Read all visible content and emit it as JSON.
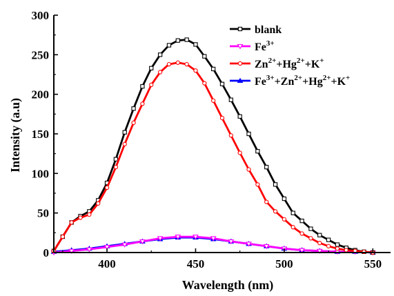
{
  "chart_data": {
    "type": "line",
    "xlabel": "Wavelength (nm)",
    "ylabel": "Intensity (a.u)",
    "xlim": [
      370,
      560
    ],
    "ylim": [
      0,
      300
    ],
    "xticks": [
      400,
      450,
      500,
      550
    ],
    "yticks": [
      0,
      50,
      100,
      150,
      200,
      250,
      300
    ],
    "grid": false,
    "legend_position": "top-right",
    "series": [
      {
        "name": "blank",
        "color": "#000000",
        "marker": "square",
        "x": [
          370,
          375,
          380,
          385,
          390,
          395,
          400,
          405,
          410,
          415,
          420,
          425,
          430,
          435,
          440,
          445,
          450,
          455,
          460,
          465,
          470,
          475,
          480,
          485,
          490,
          495,
          500,
          505,
          510,
          515,
          520,
          525,
          530,
          535,
          540,
          545,
          550
        ],
        "y": [
          2,
          20,
          38,
          46,
          52,
          66,
          88,
          118,
          152,
          182,
          210,
          233,
          250,
          262,
          268,
          269,
          263,
          248,
          232,
          213,
          193,
          172,
          150,
          128,
          108,
          86,
          68,
          50,
          40,
          30,
          22,
          16,
          10,
          6,
          3,
          1,
          0
        ]
      },
      {
        "name": "Fe³⁺",
        "label_parts": [
          [
            "Fe",
            ""
          ],
          [
            "3+",
            "sup"
          ]
        ],
        "color": "#ff00ff",
        "marker": "triangle-down",
        "x": [
          370,
          380,
          390,
          400,
          410,
          420,
          430,
          440,
          450,
          460,
          470,
          480,
          490,
          500,
          510,
          520,
          530,
          540,
          550
        ],
        "y": [
          0,
          2,
          4,
          7,
          10,
          14,
          18,
          20,
          20,
          18,
          14,
          11,
          8,
          5,
          3,
          2,
          1,
          1,
          0
        ]
      },
      {
        "name": "Zn²⁺+Hg²⁺+K⁺",
        "label_parts": [
          [
            "Zn",
            ""
          ],
          [
            "2+",
            "sup"
          ],
          [
            "+Hg",
            ""
          ],
          [
            "2+",
            "sup"
          ],
          [
            "+K",
            ""
          ],
          [
            "+",
            "sup"
          ]
        ],
        "color": "#ff0000",
        "marker": "circle",
        "x": [
          370,
          375,
          380,
          385,
          390,
          395,
          400,
          405,
          410,
          415,
          420,
          425,
          430,
          435,
          440,
          445,
          450,
          455,
          460,
          465,
          470,
          475,
          480,
          485,
          490,
          495,
          500,
          505,
          510,
          515,
          520,
          525,
          530,
          535,
          540,
          545,
          550
        ],
        "y": [
          2,
          20,
          38,
          44,
          48,
          62,
          82,
          108,
          137,
          164,
          188,
          212,
          228,
          238,
          240,
          238,
          230,
          214,
          192,
          170,
          148,
          126,
          105,
          86,
          64,
          52,
          42,
          32,
          24,
          18,
          12,
          8,
          5,
          3,
          2,
          1,
          0
        ]
      },
      {
        "name": "Fe³⁺+Zn²⁺+Hg²⁺+K⁺",
        "label_parts": [
          [
            "Fe",
            ""
          ],
          [
            "3+",
            "sup"
          ],
          [
            "+Zn",
            ""
          ],
          [
            "2+",
            "sup"
          ],
          [
            "+Hg",
            ""
          ],
          [
            "2+",
            "sup"
          ],
          [
            "+K",
            ""
          ],
          [
            "+",
            "sup"
          ]
        ],
        "color": "#0000ff",
        "marker": "triangle-up",
        "x": [
          370,
          380,
          390,
          400,
          410,
          420,
          430,
          440,
          450,
          460,
          470,
          480,
          490,
          500,
          510,
          520,
          530,
          540,
          550
        ],
        "y": [
          1,
          3,
          5,
          8,
          11,
          14,
          17,
          19,
          19,
          17,
          14,
          11,
          8,
          5,
          3,
          2,
          1,
          1,
          0
        ]
      }
    ]
  }
}
